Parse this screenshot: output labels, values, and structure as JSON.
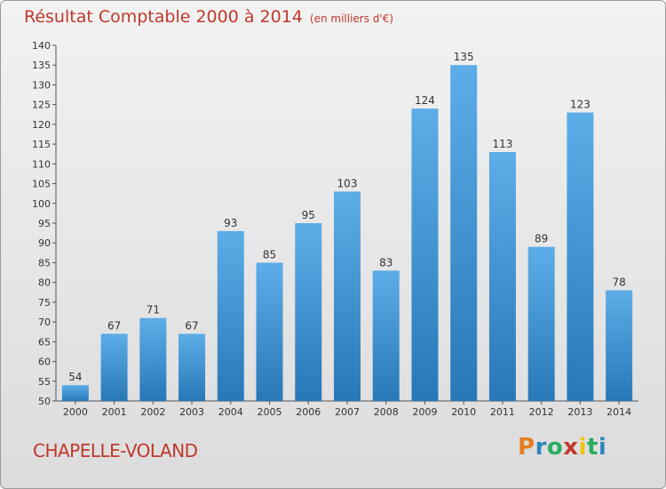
{
  "header": {
    "title": "Résultat Comptable 2000 à 2014",
    "unit": "(en milliers d'€)"
  },
  "footer": {
    "place": "CHAPELLE-VOLAND",
    "logo": "Proxiti"
  },
  "colors": {
    "title": "#c0392b",
    "bar_top": "#5dade8",
    "bar_bottom": "#2878b8"
  },
  "chart_data": {
    "type": "bar",
    "title": "Résultat Comptable 2000 à 2014",
    "subtitle": "(en milliers d'€)",
    "categories": [
      "2000",
      "2001",
      "2002",
      "2003",
      "2004",
      "2005",
      "2006",
      "2007",
      "2008",
      "2009",
      "2010",
      "2011",
      "2012",
      "2013",
      "2014"
    ],
    "values": [
      54,
      67,
      71,
      67,
      93,
      85,
      95,
      103,
      83,
      124,
      135,
      113,
      89,
      123,
      78
    ],
    "ylim": [
      50,
      140
    ],
    "yticks": [
      50,
      55,
      60,
      65,
      70,
      75,
      80,
      85,
      90,
      95,
      100,
      105,
      110,
      115,
      120,
      125,
      130,
      135,
      140
    ],
    "grid": false,
    "legend": "none"
  }
}
